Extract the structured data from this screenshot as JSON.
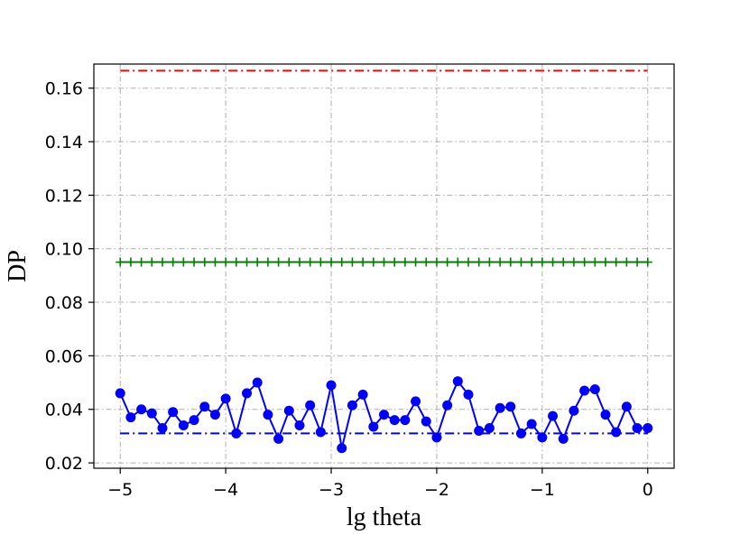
{
  "chart_data": {
    "type": "line",
    "xlabel": "lg theta",
    "ylabel": "DP",
    "xlim": [
      -5.25,
      0.25
    ],
    "ylim": [
      0.018,
      0.169
    ],
    "grid": true,
    "xticks": [
      -5,
      -4,
      -3,
      -2,
      -1,
      0
    ],
    "xtick_labels": [
      "−5",
      "−4",
      "−3",
      "−2",
      "−1",
      "0"
    ],
    "yticks": [
      0.02,
      0.04,
      0.06,
      0.08,
      0.1,
      0.12,
      0.14,
      0.16
    ],
    "ytick_labels": [
      "0.02",
      "0.04",
      "0.06",
      "0.08",
      "0.10",
      "0.12",
      "0.14",
      "0.16"
    ],
    "series": [
      {
        "style": "dashdot",
        "color": "#ff0000",
        "marker": "none",
        "x": [
          -5,
          0
        ],
        "y": [
          0.1665,
          0.1665
        ]
      },
      {
        "style": "solid",
        "color": "#008000",
        "marker": "plus",
        "x": [
          -5.0,
          -4.9,
          -4.8,
          -4.7,
          -4.6,
          -4.5,
          -4.4,
          -4.3,
          -4.2,
          -4.1,
          -4.0,
          -3.9,
          -3.8,
          -3.7,
          -3.6,
          -3.5,
          -3.4,
          -3.3,
          -3.2,
          -3.1,
          -3.0,
          -2.9,
          -2.8,
          -2.7,
          -2.6,
          -2.5,
          -2.4,
          -2.3,
          -2.2,
          -2.1,
          -2.0,
          -1.9,
          -1.8,
          -1.7,
          -1.6,
          -1.5,
          -1.4,
          -1.3,
          -1.2,
          -1.1,
          -1.0,
          -0.9,
          -0.8,
          -0.7,
          -0.6,
          -0.5,
          -0.4,
          -0.3,
          -0.2,
          -0.1,
          0.0
        ],
        "y": [
          0.095,
          0.095,
          0.095,
          0.095,
          0.095,
          0.095,
          0.095,
          0.095,
          0.095,
          0.095,
          0.095,
          0.095,
          0.095,
          0.095,
          0.095,
          0.095,
          0.095,
          0.095,
          0.095,
          0.095,
          0.095,
          0.095,
          0.095,
          0.095,
          0.095,
          0.095,
          0.095,
          0.095,
          0.095,
          0.095,
          0.095,
          0.095,
          0.095,
          0.095,
          0.095,
          0.095,
          0.095,
          0.095,
          0.095,
          0.095,
          0.095,
          0.095,
          0.095,
          0.095,
          0.095,
          0.095,
          0.095,
          0.095,
          0.095,
          0.095,
          0.095
        ]
      },
      {
        "style": "solid",
        "color": "#0000ff",
        "marker": "circle",
        "x": [
          -5.0,
          -4.9,
          -4.8,
          -4.7,
          -4.6,
          -4.5,
          -4.4,
          -4.3,
          -4.2,
          -4.1,
          -4.0,
          -3.9,
          -3.8,
          -3.7,
          -3.6,
          -3.5,
          -3.4,
          -3.3,
          -3.2,
          -3.1,
          -3.0,
          -2.9,
          -2.8,
          -2.7,
          -2.6,
          -2.5,
          -2.4,
          -2.3,
          -2.2,
          -2.1,
          -2.0,
          -1.9,
          -1.8,
          -1.7,
          -1.6,
          -1.5,
          -1.4,
          -1.3,
          -1.2,
          -1.1,
          -1.0,
          -0.9,
          -0.8,
          -0.7,
          -0.6,
          -0.5,
          -0.4,
          -0.3,
          -0.2,
          -0.1,
          0.0
        ],
        "y": [
          0.046,
          0.037,
          0.04,
          0.0385,
          0.033,
          0.039,
          0.034,
          0.036,
          0.041,
          0.038,
          0.044,
          0.031,
          0.046,
          0.05,
          0.038,
          0.029,
          0.0395,
          0.034,
          0.0415,
          0.0315,
          0.049,
          0.0255,
          0.0415,
          0.0455,
          0.0335,
          0.038,
          0.036,
          0.036,
          0.043,
          0.0355,
          0.0295,
          0.0415,
          0.0505,
          0.0455,
          0.032,
          0.033,
          0.0405,
          0.041,
          0.031,
          0.0345,
          0.0295,
          0.0375,
          0.029,
          0.0395,
          0.047,
          0.0475,
          0.038,
          0.0315,
          0.041,
          0.033,
          0.033
        ]
      },
      {
        "style": "dashdot",
        "color": "#0000ff",
        "marker": "none",
        "x": [
          -5,
          0
        ],
        "y": [
          0.031,
          0.031
        ]
      }
    ]
  }
}
